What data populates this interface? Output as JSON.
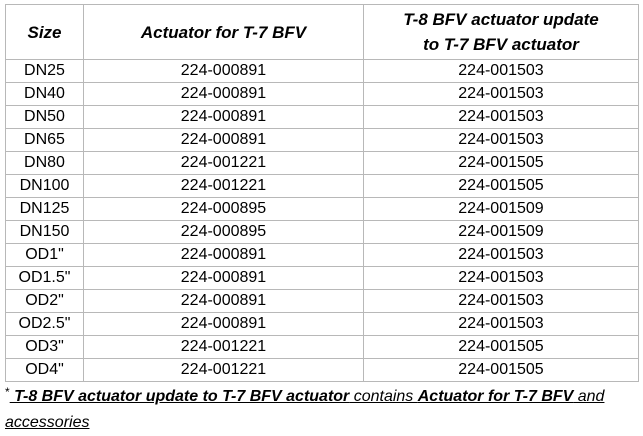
{
  "table": {
    "headers": {
      "size": "Size",
      "t7": "Actuator for T-7 BFV",
      "t8_line1": "T-8 BFV  actuator update",
      "t8_line2": "to T-7 BFV actuator"
    },
    "rows": [
      {
        "size": "DN25",
        "t7": "224-000891",
        "t8": "224-001503"
      },
      {
        "size": "DN40",
        "t7": "224-000891",
        "t8": "224-001503"
      },
      {
        "size": "DN50",
        "t7": "224-000891",
        "t8": "224-001503"
      },
      {
        "size": "DN65",
        "t7": "224-000891",
        "t8": "224-001503"
      },
      {
        "size": "DN80",
        "t7": "224-001221",
        "t8": "224-001505"
      },
      {
        "size": "DN100",
        "t7": "224-001221",
        "t8": "224-001505"
      },
      {
        "size": "DN125",
        "t7": "224-000895",
        "t8": "224-001509"
      },
      {
        "size": "DN150",
        "t7": "224-000895",
        "t8": "224-001509"
      },
      {
        "size": "OD1\"",
        "t7": "224-000891",
        "t8": "224-001503"
      },
      {
        "size": "OD1.5\"",
        "t7": "224-000891",
        "t8": "224-001503"
      },
      {
        "size": "OD2\"",
        "t7": "224-000891",
        "t8": "224-001503"
      },
      {
        "size": "OD2.5\"",
        "t7": "224-000891",
        "t8": "224-001503"
      },
      {
        "size": "OD3\"",
        "t7": "224-001221",
        "t8": "224-001505"
      },
      {
        "size": "OD4\"",
        "t7": "224-001221",
        "t8": "224-001505"
      }
    ]
  },
  "note": {
    "asterisk": "*",
    "part1": " T-8 BFV  actuator update to T-7 BFV actuator",
    "part2": " contains ",
    "part3": " Actuator for T-7 BFV",
    "part4": " and accessories"
  }
}
